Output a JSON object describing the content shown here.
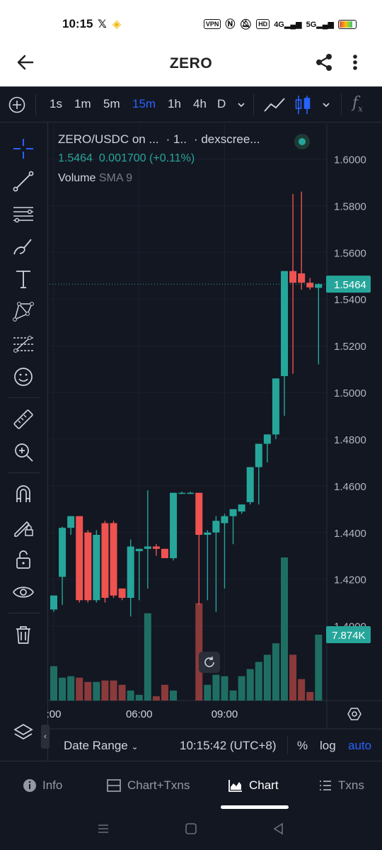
{
  "status_bar": {
    "time": "10:15",
    "left_icons": [
      "x-logo-icon",
      "binance-logo-icon"
    ],
    "vpn": "VPN",
    "hd": "HD",
    "net1": "4G",
    "net2": "5G"
  },
  "app_bar": {
    "title": "ZERO"
  },
  "timeframes": [
    {
      "label": "1s",
      "active": false
    },
    {
      "label": "1m",
      "active": false
    },
    {
      "label": "5m",
      "active": false
    },
    {
      "label": "15m",
      "active": true
    },
    {
      "label": "1h",
      "active": false
    },
    {
      "label": "4h",
      "active": false
    },
    {
      "label": "D",
      "active": false
    }
  ],
  "legend": {
    "symbol": "ZERO/USDC on ...",
    "interval": "· 1..",
    "source": "· dexscree...",
    "last_price": "1.5464",
    "change": "0.001700",
    "change_pct": "(+0.11%)",
    "indicator_name": "Volume",
    "indicator_params": "SMA 9"
  },
  "colors": {
    "up": "#26a69a",
    "down": "#ef5350",
    "up_volume": "#1f6e64",
    "down_volume": "#8a3a3b",
    "accent": "#2962ff",
    "background": "#131722"
  },
  "chart_data": {
    "type": "candlestick",
    "price_axis_ticks": [
      "1.6000",
      "1.5800",
      "1.5600",
      "1.5400",
      "1.5200",
      "1.5000",
      "1.4800",
      "1.4600",
      "1.4400",
      "1.4200",
      "1.4000"
    ],
    "ylim": [
      1.385,
      1.605
    ],
    "time_axis_ticks": [
      {
        "label": ":00",
        "index": 0
      },
      {
        "label": "06:00",
        "index": 10
      },
      {
        "label": "09:00",
        "index": 20
      }
    ],
    "last_price_label": "1.5464",
    "volume_label": "7.874K",
    "candles": [
      {
        "o": 1.407,
        "h": 1.412,
        "l": 1.406,
        "c": 1.413,
        "v": 0.24
      },
      {
        "o": 1.421,
        "h": 1.4425,
        "l": 1.409,
        "c": 1.442,
        "v": 0.16
      },
      {
        "o": 1.442,
        "h": 1.447,
        "l": 1.439,
        "c": 1.447,
        "v": 0.17
      },
      {
        "o": 1.447,
        "h": 1.447,
        "l": 1.41,
        "c": 1.411,
        "v": 0.16
      },
      {
        "o": 1.44,
        "h": 1.441,
        "l": 1.41,
        "c": 1.411,
        "v": 0.13
      },
      {
        "o": 1.411,
        "h": 1.441,
        "l": 1.41,
        "c": 1.439,
        "v": 0.13
      },
      {
        "o": 1.444,
        "h": 1.445,
        "l": 1.41,
        "c": 1.412,
        "v": 0.14
      },
      {
        "o": 1.444,
        "h": 1.445,
        "l": 1.412,
        "c": 1.413,
        "v": 0.14
      },
      {
        "o": 1.416,
        "h": 1.416,
        "l": 1.411,
        "c": 1.412,
        "v": 0.11
      },
      {
        "o": 1.412,
        "h": 1.437,
        "l": 1.404,
        "c": 1.434,
        "v": 0.07
      },
      {
        "o": 1.432,
        "h": 1.433,
        "l": 1.411,
        "c": 1.433,
        "v": 0.04
      },
      {
        "o": 1.433,
        "h": 1.458,
        "l": 1.416,
        "c": 1.434,
        "v": 0.61
      },
      {
        "o": 1.434,
        "h": 1.435,
        "l": 1.43,
        "c": 1.433,
        "v": 0.03
      },
      {
        "o": 1.433,
        "h": 1.433,
        "l": 1.429,
        "c": 1.429,
        "v": 0.11
      },
      {
        "o": 1.429,
        "h": 1.457,
        "l": 1.428,
        "c": 1.457,
        "v": 0.07
      },
      {
        "o": 1.457,
        "h": 1.4575,
        "l": 1.4565,
        "c": 1.457,
        "v": 0.0
      },
      {
        "o": 1.457,
        "h": 1.4575,
        "l": 1.4565,
        "c": 1.457,
        "v": 0.0
      },
      {
        "o": 1.457,
        "h": 1.457,
        "l": 1.409,
        "c": 1.439,
        "v": 0.68
      },
      {
        "o": 1.439,
        "h": 1.441,
        "l": 1.411,
        "c": 1.44,
        "v": 0.11
      },
      {
        "o": 1.44,
        "h": 1.447,
        "l": 1.406,
        "c": 1.445,
        "v": 0.18
      },
      {
        "o": 1.444,
        "h": 1.448,
        "l": 1.416,
        "c": 1.447,
        "v": 0.17
      },
      {
        "o": 1.447,
        "h": 1.449,
        "l": 1.435,
        "c": 1.45,
        "v": 0.07
      },
      {
        "o": 1.449,
        "h": 1.452,
        "l": 1.448,
        "c": 1.452,
        "v": 0.17
      },
      {
        "o": 1.453,
        "h": 1.468,
        "l": 1.452,
        "c": 1.468,
        "v": 0.22
      },
      {
        "o": 1.468,
        "h": 1.478,
        "l": 1.452,
        "c": 1.478,
        "v": 0.27
      },
      {
        "o": 1.478,
        "h": 1.482,
        "l": 1.47,
        "c": 1.482,
        "v": 0.32
      },
      {
        "o": 1.482,
        "h": 1.506,
        "l": 1.48,
        "c": 1.506,
        "v": 0.4
      },
      {
        "o": 1.507,
        "h": 1.552,
        "l": 1.49,
        "c": 1.552,
        "v": 1.0
      },
      {
        "o": 1.552,
        "h": 1.585,
        "l": 1.508,
        "c": 1.547,
        "v": 0.32
      },
      {
        "o": 1.551,
        "h": 1.586,
        "l": 1.544,
        "c": 1.547,
        "v": 0.15
      },
      {
        "o": 1.547,
        "h": 1.549,
        "l": 1.544,
        "c": 1.545,
        "v": 0.06
      },
      {
        "o": 1.5448,
        "h": 1.5468,
        "l": 1.512,
        "c": 1.5464,
        "v": 0.46
      }
    ]
  },
  "date_bar": {
    "date_range_label": "Date Range",
    "clock": "10:15:42 (UTC+8)",
    "percent": "%",
    "log": "log",
    "auto": "auto"
  },
  "bottom_nav": [
    {
      "label": "Info",
      "icon": "info-icon",
      "active": false
    },
    {
      "label": "Chart+Txns",
      "icon": "split-view-icon",
      "active": false
    },
    {
      "label": "Chart",
      "icon": "area-chart-icon",
      "active": true
    },
    {
      "label": "Txns",
      "icon": "list-icon",
      "active": false
    }
  ]
}
